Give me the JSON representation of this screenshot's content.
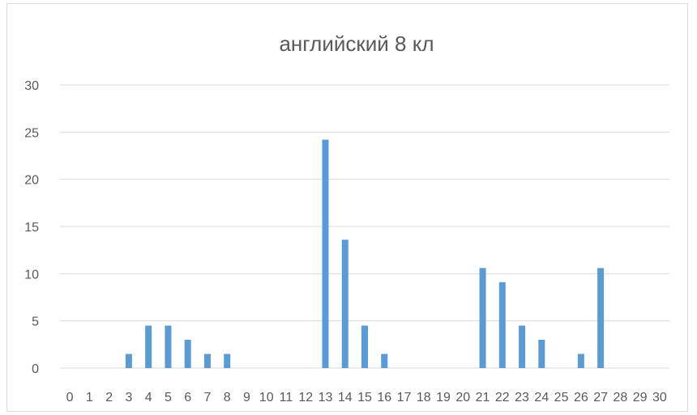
{
  "chart_data": {
    "type": "bar",
    "title": "английский 8 кл",
    "xlabel": "",
    "ylabel": "",
    "categories": [
      "0",
      "1",
      "2",
      "3",
      "4",
      "5",
      "6",
      "7",
      "8",
      "9",
      "10",
      "11",
      "12",
      "13",
      "14",
      "15",
      "16",
      "17",
      "18",
      "19",
      "20",
      "21",
      "22",
      "23",
      "24",
      "25",
      "26",
      "27",
      "28",
      "29",
      "30"
    ],
    "values": [
      0,
      0,
      0,
      1.5,
      4.5,
      4.5,
      3,
      1.5,
      1.5,
      0,
      0,
      0,
      0,
      24.2,
      13.6,
      4.5,
      1.5,
      0,
      0,
      0,
      0,
      10.6,
      9.1,
      4.5,
      3,
      0,
      1.5,
      10.6,
      0,
      0,
      0
    ],
    "ylim": [
      0,
      30
    ],
    "yticks": [
      0,
      5,
      10,
      15,
      20,
      25,
      30
    ],
    "grid": true,
    "legend": "none",
    "colors": {
      "bar": "#5b9bd5",
      "grid": "#d9d9d9",
      "text": "#595959"
    }
  }
}
